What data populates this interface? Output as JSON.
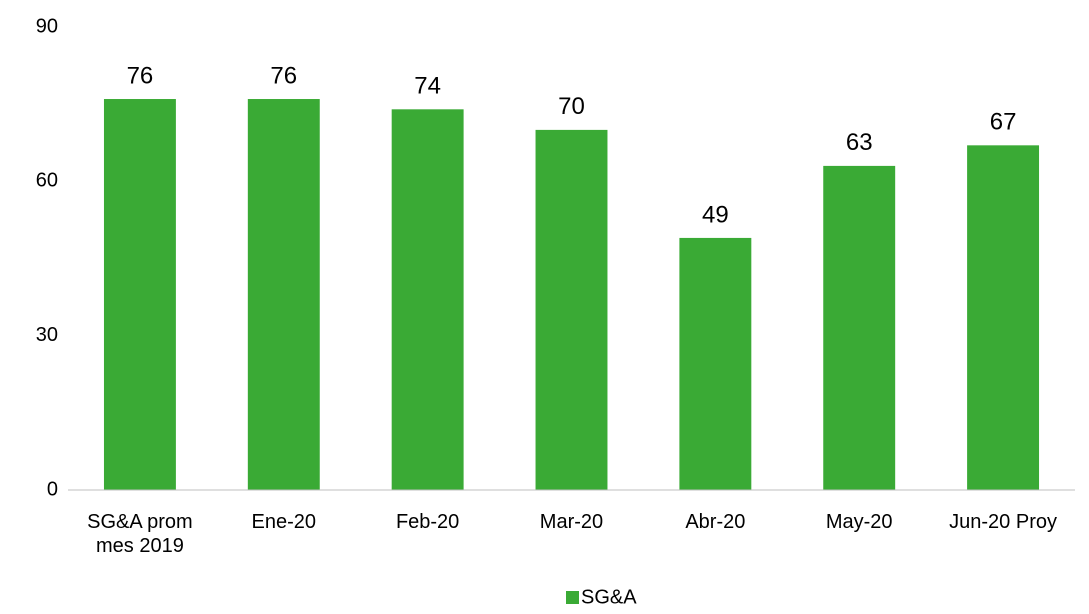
{
  "chart_data": {
    "type": "bar",
    "categories": [
      "SG&A prom mes 2019",
      "Ene-20",
      "Feb-20",
      "Mar-20",
      "Abr-20",
      "May-20",
      "Jun-20 Proy"
    ],
    "series": [
      {
        "name": "SG&A",
        "color": "#3aaa35",
        "values": [
          76,
          76,
          74,
          70,
          49,
          63,
          67
        ]
      }
    ],
    "ylim": [
      0,
      90
    ],
    "yticks": [
      0,
      30,
      60,
      90
    ],
    "grid": false,
    "legend": "bottom"
  }
}
